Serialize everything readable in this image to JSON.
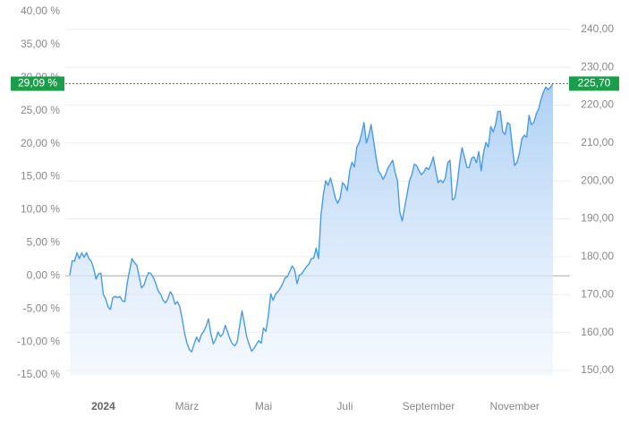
{
  "chart_data": {
    "type": "line",
    "xlim": [
      0,
      202
    ],
    "xticks": [
      {
        "value": 14,
        "label": "2024"
      },
      {
        "value": 49,
        "label": "März"
      },
      {
        "value": 81,
        "label": "Mai"
      },
      {
        "value": 115,
        "label": "Juli"
      },
      {
        "value": 150,
        "label": "September"
      },
      {
        "value": 186,
        "label": "November"
      }
    ],
    "ylim": [
      -15,
      40
    ],
    "yticks": [
      {
        "value": -15,
        "label": "-15,00 %"
      },
      {
        "value": -10,
        "label": "-10,00 %"
      },
      {
        "value": -5,
        "label": "-5,00 %"
      },
      {
        "value": 0,
        "label": "0,00 %"
      },
      {
        "value": 5,
        "label": "5,00 %"
      },
      {
        "value": 10,
        "label": "10,00 %"
      },
      {
        "value": 15,
        "label": "15,00 %"
      },
      {
        "value": 20,
        "label": "20,00 %"
      },
      {
        "value": 25,
        "label": "25,00 %"
      },
      {
        "value": 30,
        "label": "30,00 %"
      },
      {
        "value": 35,
        "label": "35,00 %"
      },
      {
        "value": 40,
        "label": "40,00 %"
      }
    ],
    "y2lim": [
      148.8,
      244.7
    ],
    "y2ticks": [
      {
        "value": 150,
        "label": "150,00"
      },
      {
        "value": 160,
        "label": "160,00"
      },
      {
        "value": 170,
        "label": "170,00"
      },
      {
        "value": 180,
        "label": "180,00"
      },
      {
        "value": 190,
        "label": "190,00"
      },
      {
        "value": 200,
        "label": "200,00"
      },
      {
        "value": 210,
        "label": "210,00"
      },
      {
        "value": 220,
        "label": "220,00"
      },
      {
        "value": 230,
        "label": "230,00"
      },
      {
        "value": 240,
        "label": "240,00"
      }
    ],
    "grid": true,
    "series": [
      {
        "color": "#4a9be6",
        "values": [
          0.1,
          2.3,
          2.2,
          3.5,
          2.6,
          3.5,
          2.8,
          3.5,
          2.6,
          2.2,
          1.1,
          -0.5,
          0.3,
          0.4,
          -2.8,
          -3.5,
          -4.7,
          -5.1,
          -3.3,
          -3.1,
          -3.3,
          -3.1,
          -3.8,
          -3.9,
          -1.1,
          0.8,
          2.6,
          2.0,
          1.6,
          -0.1,
          -1.8,
          -1.4,
          -0.3,
          0.5,
          0.3,
          -0.3,
          -1.2,
          -2.3,
          -2.8,
          -3.7,
          -4.1,
          -3.5,
          -2.4,
          -3.0,
          -4.3,
          -3.9,
          -4.7,
          -6.5,
          -8.7,
          -10.2,
          -11.2,
          -11.5,
          -10.3,
          -9.3,
          -10.0,
          -8.9,
          -8.4,
          -7.6,
          -6.5,
          -8.8,
          -10.3,
          -9.6,
          -8.5,
          -9.2,
          -8.8,
          -7.5,
          -8.5,
          -9.6,
          -10.3,
          -10.6,
          -10.0,
          -7.6,
          -5.3,
          -7.2,
          -9.3,
          -10.4,
          -11.4,
          -11.0,
          -10.4,
          -9.8,
          -10.2,
          -7.9,
          -8.4,
          -6.1,
          -2.7,
          -3.7,
          -2.8,
          -2.4,
          -1.9,
          -1.2,
          -0.3,
          -0.1,
          0.7,
          1.5,
          0.9,
          -1.2,
          0.1,
          0.3,
          0.9,
          1.4,
          1.8,
          2.6,
          2.7,
          4.2,
          2.6,
          9.1,
          12.3,
          14.4,
          13.7,
          14.8,
          13.4,
          11.8,
          11.0,
          11.8,
          14.1,
          13.7,
          12.9,
          15.9,
          17.2,
          16.5,
          19.5,
          20.2,
          21.5,
          23.2,
          20.1,
          21.3,
          22.9,
          20.5,
          18.0,
          15.9,
          15.4,
          14.6,
          15.3,
          16.3,
          16.9,
          17.5,
          15.7,
          14.4,
          9.6,
          8.3,
          10.4,
          12.3,
          14.4,
          15.3,
          16.9,
          16.7,
          15.9,
          15.3,
          15.7,
          16.4,
          16.1,
          16.9,
          18.0,
          15.9,
          14.1,
          14.5,
          14.1,
          14.8,
          17.1,
          17.5,
          11.5,
          11.8,
          14.1,
          17.1,
          19.4,
          18.0,
          16.4,
          16.4,
          17.8,
          18.0,
          17.1,
          18.8,
          15.9,
          18.7,
          20.2,
          19.5,
          22.6,
          21.8,
          22.9,
          24.9,
          24.9,
          21.8,
          21.4,
          23.2,
          22.9,
          19.5,
          16.7,
          17.2,
          18.6,
          20.7,
          21.3,
          21.0,
          24.3,
          22.9,
          23.2,
          24.5,
          25.3,
          26.7,
          27.8,
          28.6,
          28.2,
          28.6,
          29.09
        ]
      }
    ],
    "annotations": [
      {
        "value": 29.09,
        "label": "29,09 %",
        "axis": "y",
        "color": "#1a9e4a"
      },
      {
        "value": 225.7,
        "label": "225,70",
        "axis": "y2",
        "color": "#1a9e4a"
      }
    ]
  }
}
